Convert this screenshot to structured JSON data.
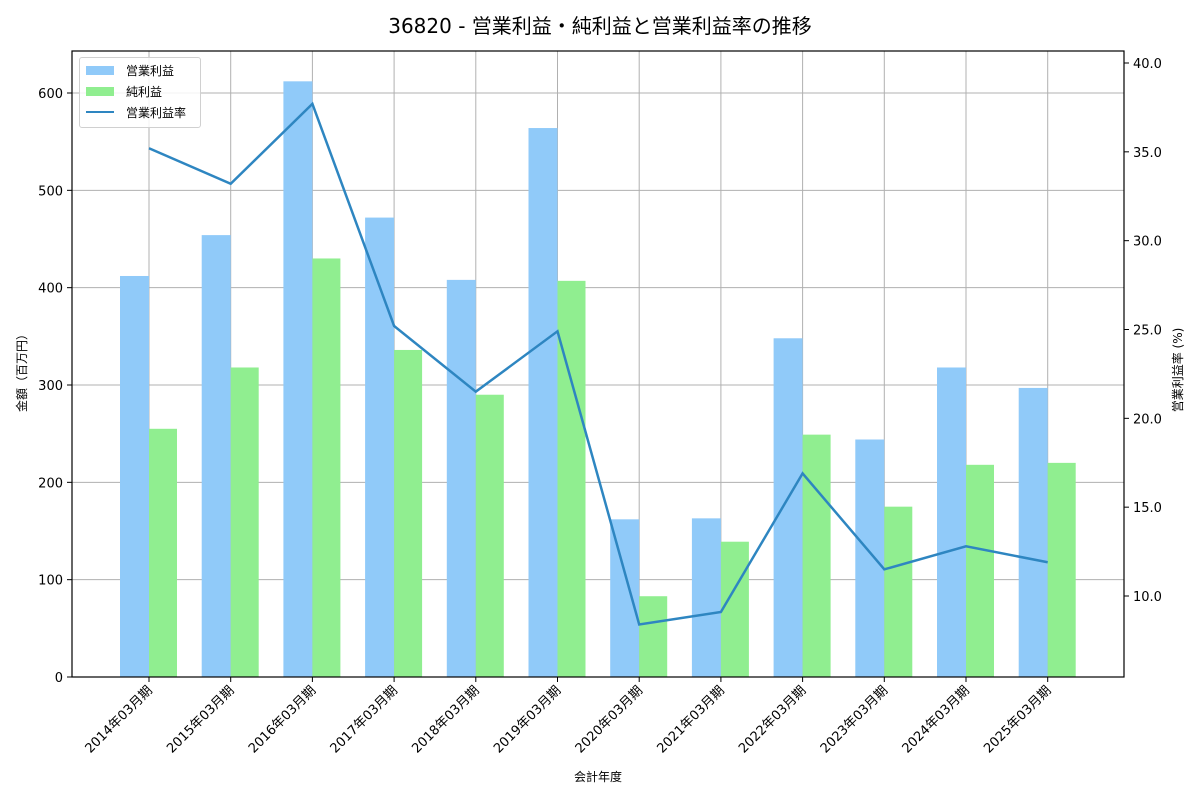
{
  "title": "36820 - 営業利益・純利益と営業利益率の推移",
  "legend": {
    "items": [
      {
        "label": "営業利益",
        "type": "bar",
        "color": "#90caf9"
      },
      {
        "label": "純利益",
        "type": "bar",
        "color": "#90ee90"
      },
      {
        "label": "営業利益率",
        "type": "line",
        "color": "#2e86c1"
      }
    ]
  },
  "axes": {
    "xlabel": "会計年度",
    "ylabel_left": "金額（百万円）",
    "ylabel_right": "営業利益率 (%)",
    "left_ticks": [
      "0",
      "100",
      "200",
      "300",
      "400",
      "500",
      "600"
    ],
    "right_ticks": [
      "10.0",
      "15.0",
      "20.0",
      "25.0",
      "30.0",
      "35.0",
      "40.0"
    ]
  },
  "chart_data": {
    "type": "bar",
    "title": "36820 - 営業利益・純利益と営業利益率の推移",
    "xlabel": "会計年度",
    "ylabel": "金額（百万円）",
    "ylabel_right": "営業利益率 (%)",
    "ylim": [
      0,
      640
    ],
    "ylim_right": [
      5.2,
      40.5
    ],
    "grid": true,
    "legend_position": "upper left",
    "categories": [
      "2014年03月期",
      "2015年03月期",
      "2016年03月期",
      "2017年03月期",
      "2018年03月期",
      "2019年03月期",
      "2020年03月期",
      "2021年03月期",
      "2022年03月期",
      "2023年03月期",
      "2024年03月期",
      "2025年03月期"
    ],
    "series": [
      {
        "name": "営業利益",
        "type": "bar",
        "axis": "left",
        "color": "#90caf9",
        "values": [
          412,
          454,
          612,
          472,
          408,
          564,
          162,
          163,
          348,
          244,
          318,
          297
        ]
      },
      {
        "name": "純利益",
        "type": "bar",
        "axis": "left",
        "color": "#90ee90",
        "values": [
          255,
          318,
          430,
          336,
          290,
          407,
          83,
          139,
          249,
          175,
          218,
          220
        ]
      },
      {
        "name": "営業利益率",
        "type": "line",
        "axis": "right",
        "color": "#2e86c1",
        "values": [
          35.2,
          33.2,
          37.7,
          25.2,
          21.5,
          24.9,
          8.4,
          9.1,
          16.9,
          11.5,
          12.8,
          11.9
        ]
      }
    ]
  }
}
